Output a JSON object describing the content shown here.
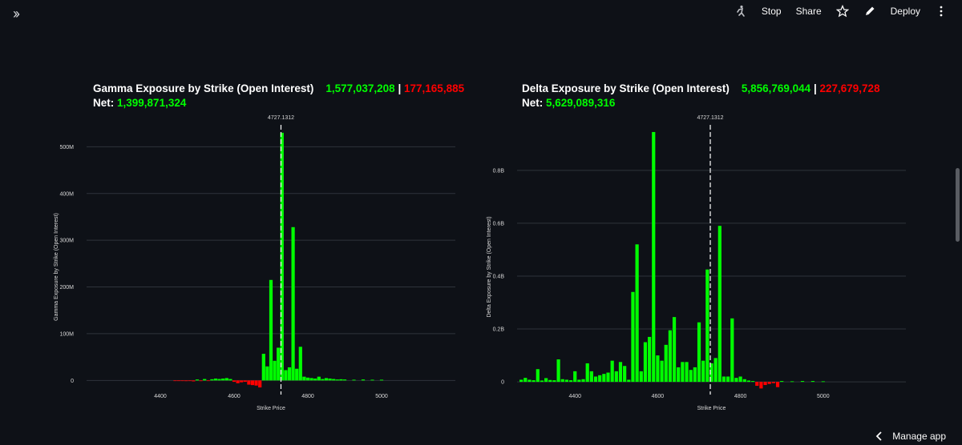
{
  "toolbar": {
    "stop_label": "Stop",
    "share_label": "Share",
    "deploy_label": "Deploy"
  },
  "footer": {
    "manage_label": "Manage app"
  },
  "colors": {
    "positive": "#00ff00",
    "negative": "#ff0000",
    "background": "#0e1117"
  },
  "charts": {
    "gamma": {
      "title": "Gamma Exposure by Strike (Open Interest)",
      "call_total": "1,577,037,208",
      "put_total": "177,165,885",
      "net_label": "Net:",
      "net_value": "1,399,871,324"
    },
    "delta": {
      "title": "Delta Exposure by Strike (Open Interest)",
      "call_total": "5,856,769,044",
      "put_total": "227,679,728",
      "net_label": "Net:",
      "net_value": "5,629,089,316"
    }
  },
  "chart_data": [
    {
      "type": "bar",
      "xlabel": "Strike Price",
      "ylabel": "Gamma Exposure by Strike (Open Interest)",
      "xlim": [
        4200,
        5200
      ],
      "ylim": [
        -20000000,
        540000000
      ],
      "x_ticks": [
        4400,
        4600,
        4800,
        5000
      ],
      "y_ticks": [
        {
          "v": 0,
          "label": "0"
        },
        {
          "v": 100000000,
          "label": "100M"
        },
        {
          "v": 200000000,
          "label": "200M"
        },
        {
          "v": 300000000,
          "label": "300M"
        },
        {
          "v": 400000000,
          "label": "400M"
        },
        {
          "v": 500000000,
          "label": "500M"
        }
      ],
      "spot": 4727.1312,
      "spot_label": "4727.1312",
      "grid": true,
      "x": [
        4440,
        4450,
        4460,
        4470,
        4480,
        4490,
        4500,
        4510,
        4520,
        4530,
        4540,
        4550,
        4560,
        4570,
        4580,
        4590,
        4600,
        4610,
        4620,
        4630,
        4640,
        4650,
        4660,
        4670,
        4680,
        4690,
        4700,
        4710,
        4720,
        4730,
        4740,
        4750,
        4760,
        4770,
        4780,
        4790,
        4800,
        4810,
        4820,
        4830,
        4840,
        4850,
        4860,
        4870,
        4880,
        4890,
        4900,
        4925,
        4950,
        4975,
        5000
      ],
      "values": [
        -1000000,
        -1200000,
        -800000,
        -1500000,
        -1000000,
        -2000000,
        2000000,
        -1500000,
        3000000,
        -1000000,
        2500000,
        4000000,
        3000000,
        4000000,
        5000000,
        3000000,
        -3000000,
        -6000000,
        -4000000,
        -3000000,
        -9000000,
        -10000000,
        -11000000,
        -15000000,
        57000000,
        30000000,
        215000000,
        42000000,
        70000000,
        530000000,
        22000000,
        28000000,
        328000000,
        25000000,
        72000000,
        8000000,
        6000000,
        5000000,
        4000000,
        8000000,
        3000000,
        5000000,
        4000000,
        3000000,
        2000000,
        2500000,
        2000000,
        1500000,
        2000000,
        1500000,
        1500000
      ]
    },
    {
      "type": "bar",
      "xlabel": "Strike Price",
      "ylabel": "Delta Exposure by Strike (Open Interest)",
      "xlim": [
        4260,
        5200
      ],
      "ylim": [
        -30000000,
        960000000
      ],
      "x_ticks": [
        4400,
        4600,
        4800,
        5000
      ],
      "y_ticks": [
        {
          "v": 0,
          "label": "0"
        },
        {
          "v": 200000000,
          "label": "0.2B"
        },
        {
          "v": 400000000,
          "label": "0.4B"
        },
        {
          "v": 600000000,
          "label": "0.6B"
        },
        {
          "v": 800000000,
          "label": "0.8B"
        }
      ],
      "spot": 4727.1312,
      "spot_label": "4727.1312",
      "grid": true,
      "x": [
        4270,
        4280,
        4290,
        4300,
        4310,
        4320,
        4330,
        4340,
        4350,
        4360,
        4370,
        4380,
        4390,
        4400,
        4410,
        4420,
        4430,
        4440,
        4450,
        4460,
        4470,
        4480,
        4490,
        4500,
        4510,
        4520,
        4530,
        4540,
        4550,
        4560,
        4570,
        4580,
        4590,
        4600,
        4610,
        4620,
        4630,
        4640,
        4650,
        4660,
        4670,
        4680,
        4690,
        4700,
        4710,
        4720,
        4730,
        4740,
        4750,
        4760,
        4770,
        4780,
        4790,
        4800,
        4810,
        4820,
        4830,
        4840,
        4850,
        4860,
        4870,
        4880,
        4890,
        4900,
        4925,
        4950,
        4975,
        5000
      ],
      "values": [
        8000000,
        15000000,
        8000000,
        6000000,
        48000000,
        5000000,
        14000000,
        7000000,
        6000000,
        85000000,
        10000000,
        8000000,
        6000000,
        40000000,
        8000000,
        10000000,
        70000000,
        40000000,
        20000000,
        25000000,
        30000000,
        35000000,
        80000000,
        40000000,
        75000000,
        60000000,
        8000000,
        340000000,
        520000000,
        40000000,
        150000000,
        170000000,
        945000000,
        100000000,
        80000000,
        140000000,
        195000000,
        245000000,
        55000000,
        75000000,
        75000000,
        45000000,
        55000000,
        225000000,
        80000000,
        425000000,
        70000000,
        90000000,
        590000000,
        20000000,
        20000000,
        240000000,
        15000000,
        20000000,
        10000000,
        5000000,
        3000000,
        -15000000,
        -25000000,
        -12000000,
        -8000000,
        -5000000,
        -20000000,
        3000000,
        2000000,
        3000000,
        3000000,
        2000000
      ]
    }
  ]
}
